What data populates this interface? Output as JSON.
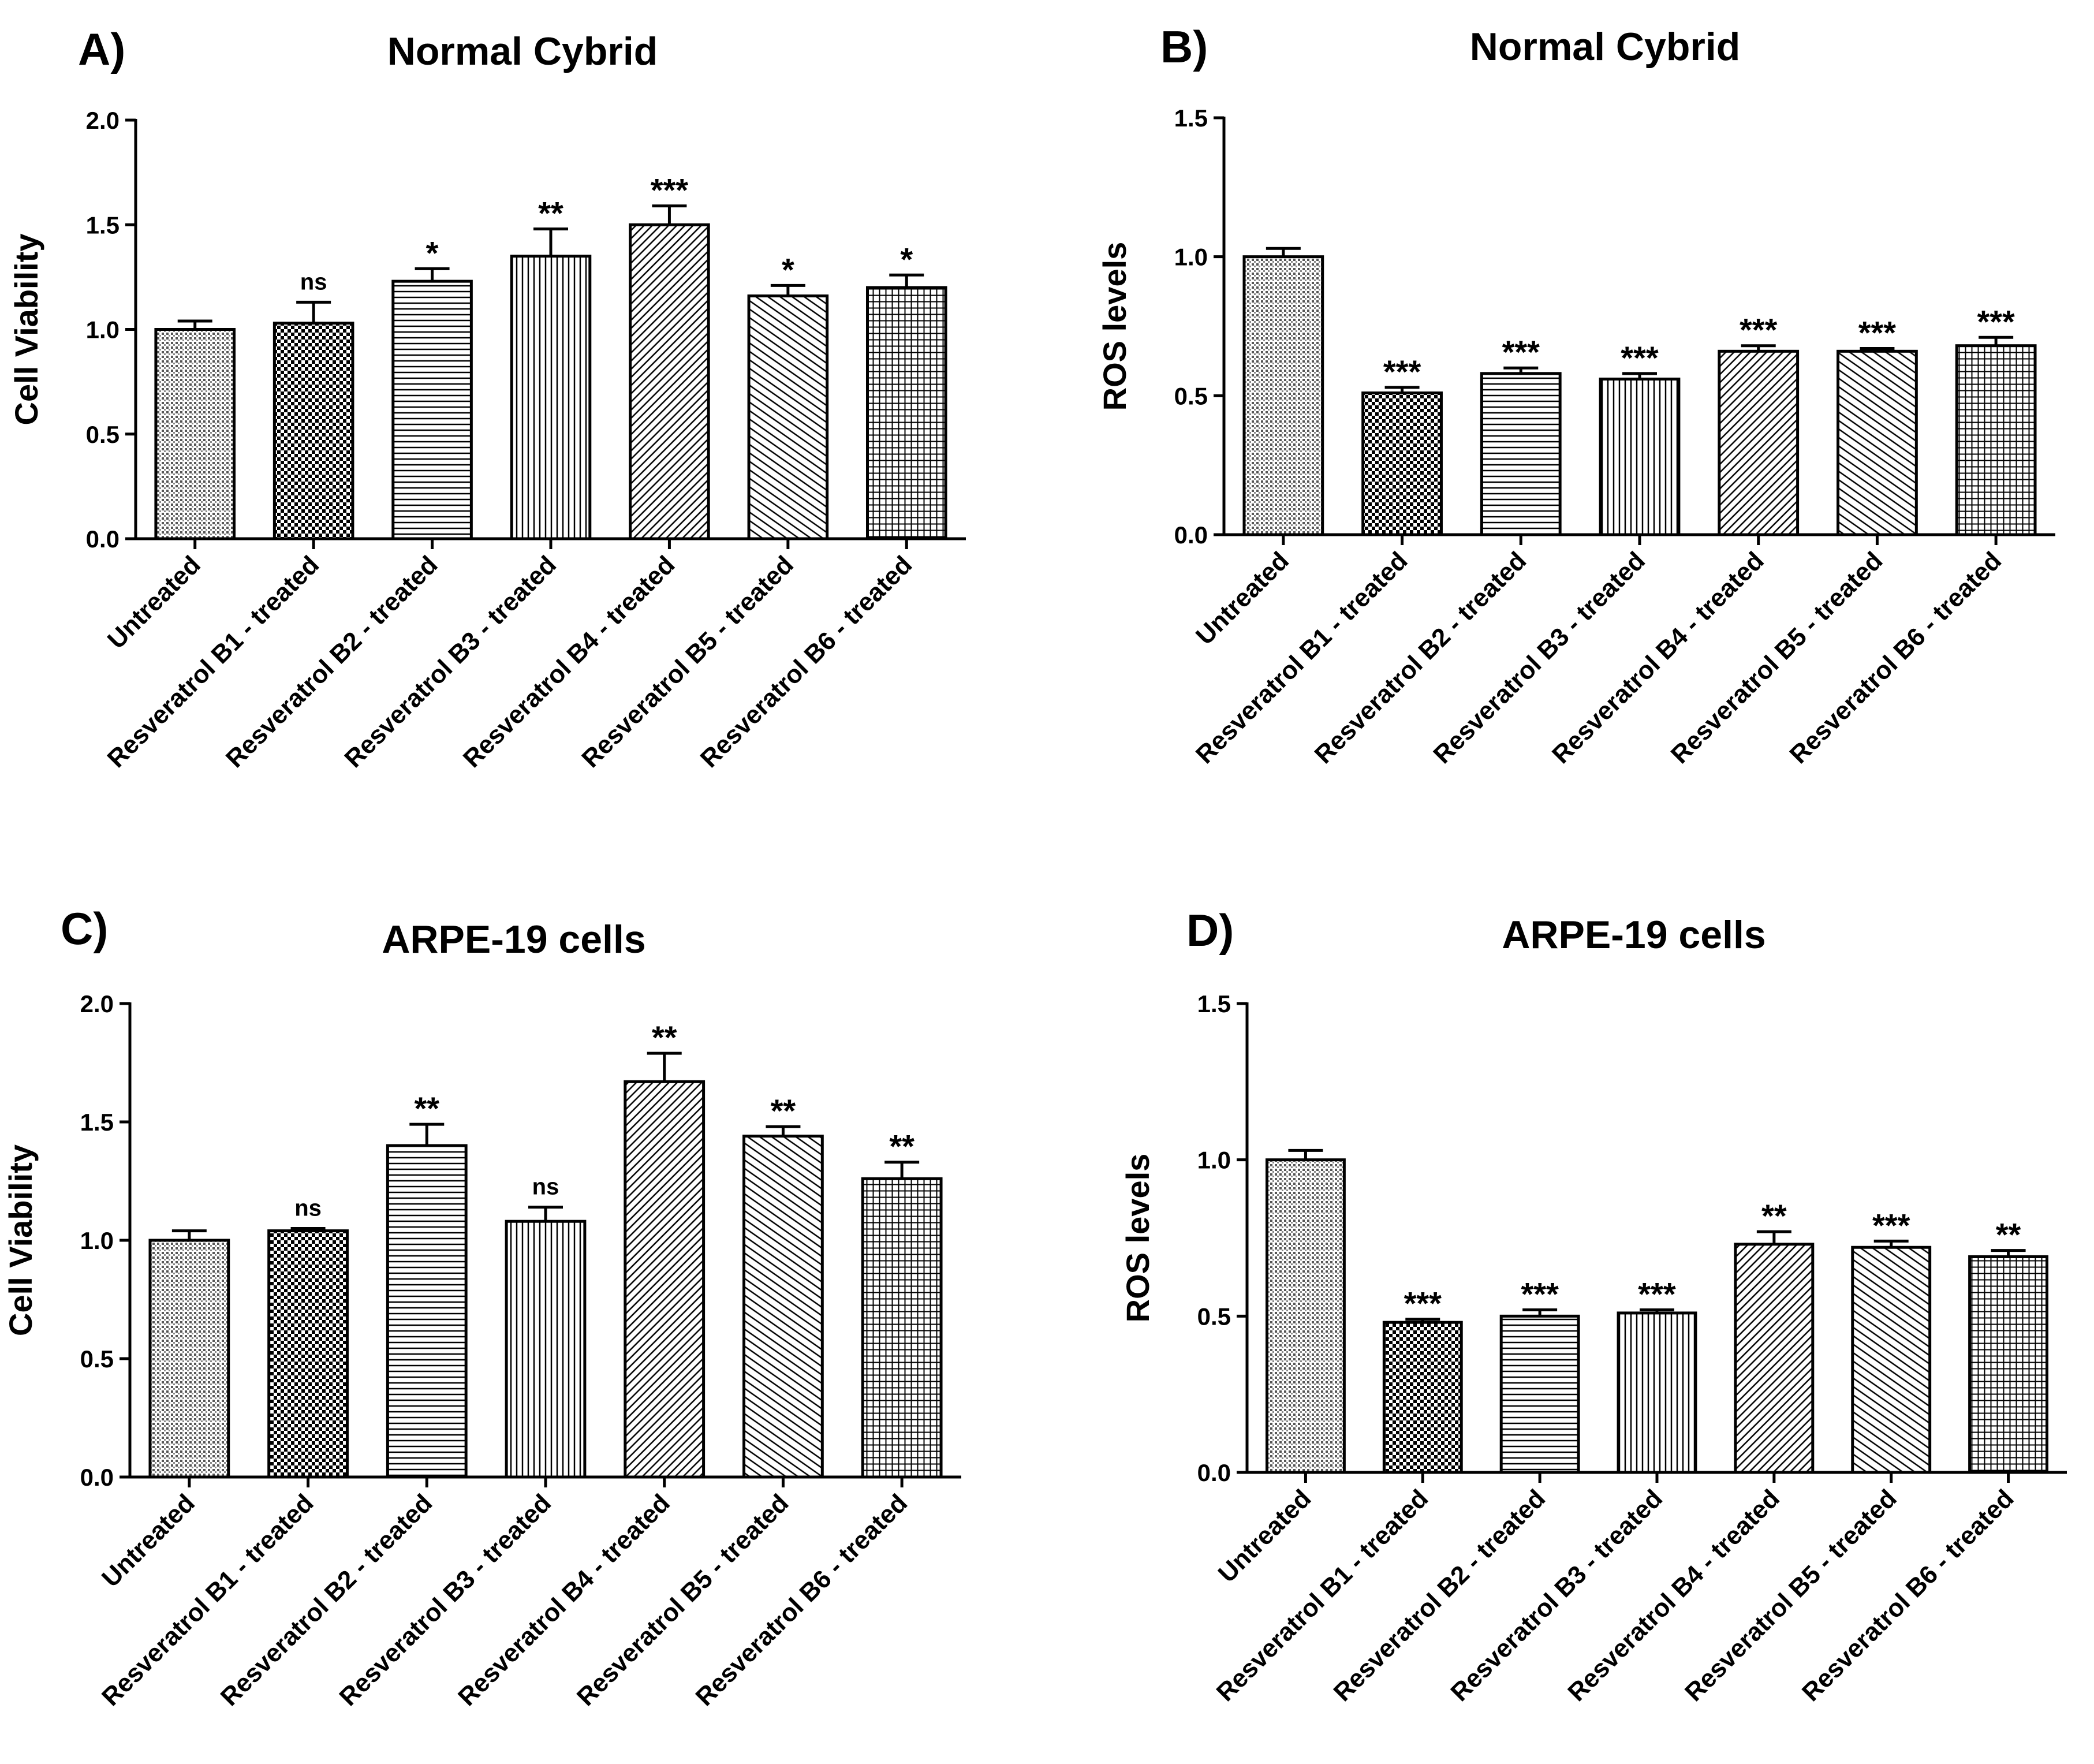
{
  "patterns": [
    "dots",
    "checker",
    "hlines",
    "vlines",
    "diag-fine",
    "diag-back",
    "grid"
  ],
  "categories": [
    "Untreated",
    "Resveratrol B1 - treated",
    "Resveratrol B2 - treated",
    "Resveratrol B3 - treated",
    "Resveratrol B4 - treated",
    "Resveratrol B5 - treated",
    "Resveratrol B6 - treated"
  ],
  "chart_data": [
    {
      "panel": "A)",
      "type": "bar",
      "title": "Normal Cybrid",
      "ylabel": "Cell Viability",
      "ylim": [
        0,
        2.0
      ],
      "yticks": [
        "0.0",
        "0.5",
        "1.0",
        "1.5",
        "2.0"
      ],
      "categories": [
        "Untreated",
        "Resveratrol B1 - treated",
        "Resveratrol B2 - treated",
        "Resveratrol B3 - treated",
        "Resveratrol B4 - treated",
        "Resveratrol B5 - treated",
        "Resveratrol B6 - treated"
      ],
      "values": [
        1.0,
        1.03,
        1.23,
        1.35,
        1.5,
        1.16,
        1.2
      ],
      "errors": [
        0.04,
        0.1,
        0.06,
        0.13,
        0.09,
        0.05,
        0.06
      ],
      "significance": [
        "",
        "ns",
        "*",
        "**",
        "***",
        "*",
        "*"
      ]
    },
    {
      "panel": "B)",
      "type": "bar",
      "title": "Normal Cybrid",
      "ylabel": "ROS levels",
      "ylim": [
        0,
        1.5
      ],
      "yticks": [
        "0.0",
        "0.5",
        "1.0",
        "1.5"
      ],
      "categories": [
        "Untreated",
        "Resveratrol B1 - treated",
        "Resveratrol B2 - treated",
        "Resveratrol B3 - treated",
        "Resveratrol B4 - treated",
        "Resveratrol B5 - treated",
        "Resveratrol B6 - treated"
      ],
      "values": [
        1.0,
        0.51,
        0.58,
        0.56,
        0.66,
        0.66,
        0.68
      ],
      "errors": [
        0.03,
        0.02,
        0.02,
        0.02,
        0.02,
        0.01,
        0.03
      ],
      "significance": [
        "",
        "***",
        "***",
        "***",
        "***",
        "***",
        "***"
      ]
    },
    {
      "panel": "C)",
      "type": "bar",
      "title": "ARPE-19 cells",
      "ylabel": "Cell Viability",
      "ylim": [
        0,
        2.0
      ],
      "yticks": [
        "0.0",
        "0.5",
        "1.0",
        "1.5",
        "2.0"
      ],
      "categories": [
        "Untreated",
        "Resveratrol B1 - treated",
        "Resveratrol B2 - treated",
        "Resveratrol B3 - treated",
        "Resveratrol B4 - treated",
        "Resveratrol B5 - treated",
        "Resveratrol B6 - treated"
      ],
      "values": [
        1.0,
        1.04,
        1.4,
        1.08,
        1.67,
        1.44,
        1.26
      ],
      "errors": [
        0.04,
        0.01,
        0.09,
        0.06,
        0.12,
        0.04,
        0.07
      ],
      "significance": [
        "",
        "ns",
        "**",
        "ns",
        "**",
        "**",
        "**"
      ]
    },
    {
      "panel": "D)",
      "type": "bar",
      "title": "ARPE-19 cells",
      "ylabel": "ROS levels",
      "ylim": [
        0,
        1.5
      ],
      "yticks": [
        "0.0",
        "0.5",
        "1.0",
        "1.5"
      ],
      "categories": [
        "Untreated",
        "Resveratrol B1 - treated",
        "Resveratrol B2 - treated",
        "Resveratrol B3 - treated",
        "Resveratrol B4 - treated",
        "Resveratrol B5 - treated",
        "Resveratrol B6 - treated"
      ],
      "values": [
        1.0,
        0.48,
        0.5,
        0.51,
        0.73,
        0.72,
        0.69
      ],
      "errors": [
        0.03,
        0.01,
        0.02,
        0.01,
        0.04,
        0.02,
        0.02
      ],
      "significance": [
        "",
        "***",
        "***",
        "***",
        "**",
        "***",
        "**"
      ]
    }
  ]
}
